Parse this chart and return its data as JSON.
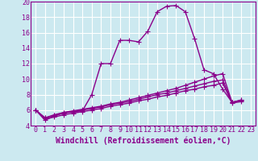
{
  "xlabel": "Windchill (Refroidissement éolien,°C)",
  "background_color": "#cce9f0",
  "line_color": "#8b008b",
  "grid_color": "#ffffff",
  "xlim": [
    -0.5,
    23.5
  ],
  "ylim": [
    4,
    20
  ],
  "xticks": [
    0,
    1,
    2,
    3,
    4,
    5,
    6,
    7,
    8,
    9,
    10,
    11,
    12,
    13,
    14,
    15,
    16,
    17,
    18,
    19,
    20,
    21,
    22,
    23
  ],
  "yticks": [
    4,
    6,
    8,
    10,
    12,
    14,
    16,
    18,
    20
  ],
  "series": [
    [
      6.0,
      4.7,
      5.2,
      5.7,
      5.8,
      5.9,
      8.0,
      12.0,
      12.0,
      15.0,
      15.0,
      14.8,
      16.2,
      18.7,
      19.4,
      19.5,
      18.7,
      15.2,
      11.2,
      10.7,
      8.7,
      7.0,
      7.3
    ],
    [
      6.0,
      5.0,
      5.4,
      5.7,
      5.9,
      6.1,
      6.3,
      6.5,
      6.8,
      7.0,
      7.3,
      7.6,
      7.9,
      8.2,
      8.5,
      8.8,
      9.2,
      9.6,
      10.0,
      10.4,
      10.7,
      7.0,
      7.3
    ],
    [
      6.0,
      5.0,
      5.3,
      5.6,
      5.8,
      6.0,
      6.2,
      6.4,
      6.7,
      6.9,
      7.1,
      7.4,
      7.7,
      8.0,
      8.2,
      8.5,
      8.8,
      9.1,
      9.4,
      9.7,
      9.9,
      7.0,
      7.2
    ],
    [
      6.0,
      4.9,
      5.1,
      5.4,
      5.6,
      5.8,
      6.0,
      6.2,
      6.5,
      6.7,
      6.9,
      7.2,
      7.4,
      7.7,
      7.9,
      8.2,
      8.5,
      8.7,
      9.0,
      9.2,
      9.5,
      6.9,
      7.1
    ]
  ],
  "marker": "+",
  "marker_size": 4,
  "line_width": 1.0,
  "xlabel_fontsize": 7,
  "tick_fontsize": 6
}
